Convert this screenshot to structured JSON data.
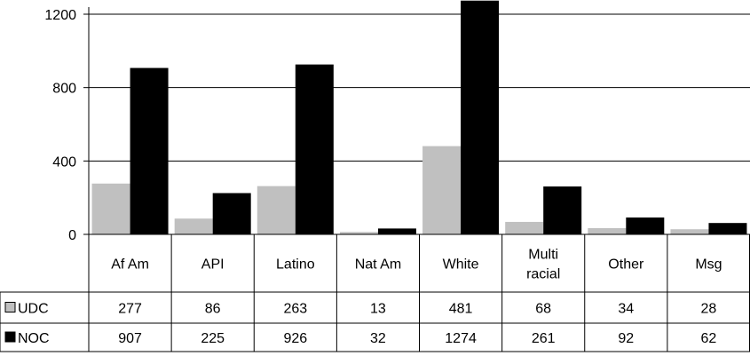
{
  "chart_data": {
    "type": "bar",
    "categories": [
      "Af Am",
      "API",
      "Latino",
      "Nat Am",
      "White",
      "Multi racial",
      "Other",
      "Msg"
    ],
    "category_lines": [
      [
        "Af Am"
      ],
      [
        "API"
      ],
      [
        "Latino"
      ],
      [
        "Nat Am"
      ],
      [
        "White"
      ],
      [
        "Multi",
        "racial"
      ],
      [
        "Other"
      ],
      [
        "Msg"
      ]
    ],
    "series": [
      {
        "name": "UDC",
        "color": "#c0c0c0",
        "values": [
          277,
          86,
          263,
          13,
          481,
          68,
          34,
          28
        ]
      },
      {
        "name": "NOC",
        "color": "#000000",
        "values": [
          907,
          225,
          926,
          32,
          1274,
          261,
          92,
          62
        ]
      }
    ],
    "yticks": [
      0,
      400,
      800,
      1200
    ],
    "ylim": [
      0,
      1200
    ],
    "grid": true,
    "legend": "table-left",
    "data_table": true
  }
}
